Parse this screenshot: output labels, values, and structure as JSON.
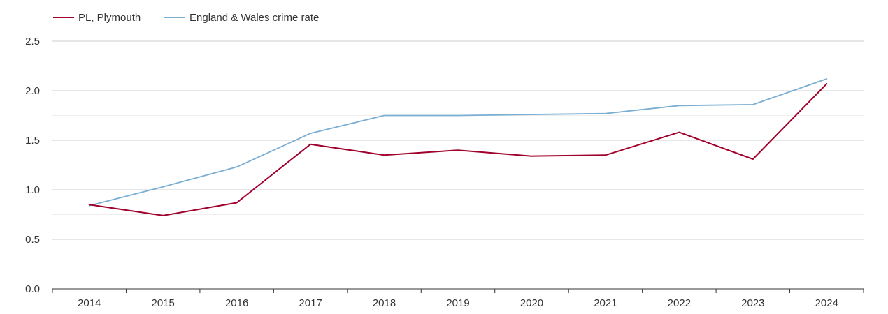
{
  "chart_data": {
    "type": "line",
    "title": "",
    "xlabel": "",
    "ylabel": "",
    "x": [
      "2014",
      "2015",
      "2016",
      "2017",
      "2018",
      "2019",
      "2020",
      "2021",
      "2022",
      "2023",
      "2024"
    ],
    "y_ticks": [
      "0.0",
      "0.5",
      "1.0",
      "1.5",
      "2.0",
      "2.5"
    ],
    "ylim": [
      0,
      2.5
    ],
    "grid": true,
    "legend_position": "top-left",
    "series": [
      {
        "name": "PL, Plymouth",
        "color": "#a0002c",
        "values": [
          0.85,
          0.74,
          0.87,
          1.46,
          1.35,
          1.4,
          1.34,
          1.35,
          1.58,
          1.31,
          2.07
        ]
      },
      {
        "name": "England & Wales crime rate",
        "color": "#7aaed3",
        "values": [
          0.84,
          1.03,
          1.23,
          1.57,
          1.75,
          1.75,
          1.76,
          1.77,
          1.85,
          1.86,
          2.12
        ]
      }
    ]
  }
}
